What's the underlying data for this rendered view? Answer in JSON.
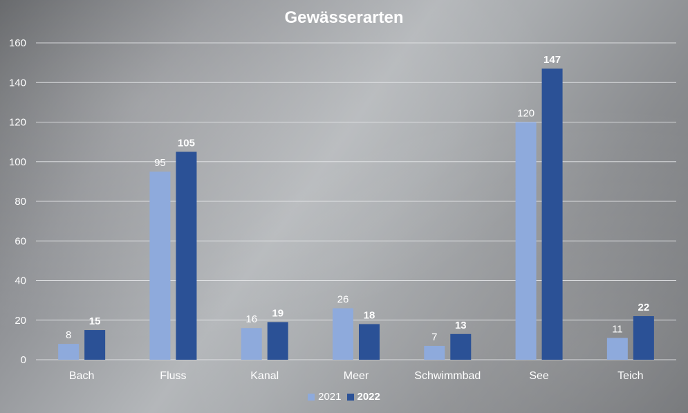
{
  "chart_data": {
    "type": "bar",
    "title": "Gewässerarten",
    "categories": [
      "Bach",
      "Fluss",
      "Kanal",
      "Meer",
      "Schwimmbad",
      "See",
      "Teich"
    ],
    "series": [
      {
        "name": "2021",
        "values": [
          8,
          95,
          16,
          26,
          7,
          120,
          11
        ],
        "color": "#8eaadc"
      },
      {
        "name": "2022",
        "values": [
          15,
          105,
          19,
          18,
          13,
          147,
          22
        ],
        "color": "#2b5196"
      }
    ],
    "yticks": [
      "0",
      "20",
      "40",
      "60",
      "80",
      "100",
      "120",
      "140",
      "160"
    ],
    "ylim": [
      0,
      160
    ],
    "xlabel": "",
    "ylabel": "",
    "grid": true,
    "legend_position": "bottom"
  }
}
